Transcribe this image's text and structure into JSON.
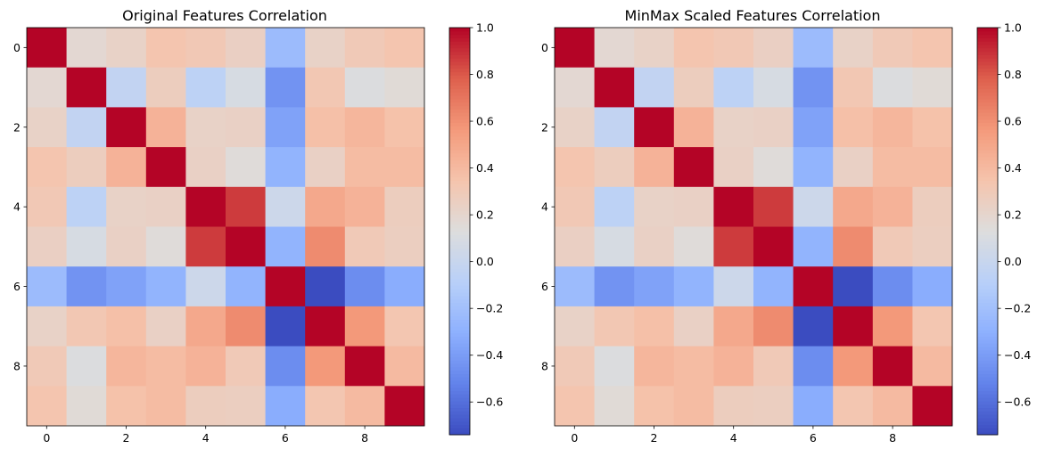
{
  "chart_data": [
    {
      "type": "heatmap",
      "title": "Original Features Correlation",
      "colormap": "coolwarm",
      "x_ticks": [
        0,
        2,
        4,
        6,
        8
      ],
      "y_ticks": [
        0,
        2,
        4,
        6,
        8
      ],
      "matrix": [
        [
          1.0,
          0.18,
          0.23,
          0.34,
          0.31,
          0.25,
          -0.23,
          0.23,
          0.3,
          0.34
        ],
        [
          0.18,
          1.0,
          -0.03,
          0.27,
          -0.06,
          0.09,
          -0.44,
          0.32,
          0.12,
          0.16
        ],
        [
          0.23,
          -0.03,
          1.0,
          0.44,
          0.23,
          0.24,
          -0.37,
          0.37,
          0.42,
          0.36
        ],
        [
          0.34,
          0.27,
          0.44,
          1.0,
          0.24,
          0.15,
          -0.28,
          0.24,
          0.39,
          0.39
        ],
        [
          0.31,
          -0.06,
          0.23,
          0.24,
          1.0,
          0.87,
          0.03,
          0.49,
          0.44,
          0.27
        ],
        [
          0.25,
          0.09,
          0.24,
          0.15,
          0.87,
          1.0,
          -0.28,
          0.62,
          0.3,
          0.26
        ],
        [
          -0.23,
          -0.44,
          -0.37,
          -0.28,
          0.03,
          -0.28,
          1.0,
          -0.74,
          -0.47,
          -0.32
        ],
        [
          0.23,
          0.32,
          0.37,
          0.24,
          0.49,
          0.62,
          -0.74,
          1.0,
          0.57,
          0.33
        ],
        [
          0.3,
          0.12,
          0.42,
          0.39,
          0.44,
          0.3,
          -0.47,
          0.57,
          1.0,
          0.4
        ],
        [
          0.34,
          0.16,
          0.36,
          0.39,
          0.27,
          0.26,
          -0.32,
          0.33,
          0.4,
          1.0
        ]
      ],
      "colorbar": {
        "vmin": -0.74,
        "vmax": 1.0,
        "ticks": [
          -0.6,
          -0.4,
          -0.2,
          0.0,
          0.2,
          0.4,
          0.6,
          0.8,
          1.0
        ]
      }
    },
    {
      "type": "heatmap",
      "title": "MinMax Scaled Features Correlation",
      "colormap": "coolwarm",
      "x_ticks": [
        0,
        2,
        4,
        6,
        8
      ],
      "y_ticks": [
        0,
        2,
        4,
        6,
        8
      ],
      "matrix": [
        [
          1.0,
          0.18,
          0.23,
          0.34,
          0.31,
          0.25,
          -0.23,
          0.23,
          0.3,
          0.34
        ],
        [
          0.18,
          1.0,
          -0.03,
          0.27,
          -0.06,
          0.09,
          -0.44,
          0.32,
          0.12,
          0.16
        ],
        [
          0.23,
          -0.03,
          1.0,
          0.44,
          0.23,
          0.24,
          -0.37,
          0.37,
          0.42,
          0.36
        ],
        [
          0.34,
          0.27,
          0.44,
          1.0,
          0.24,
          0.15,
          -0.28,
          0.24,
          0.39,
          0.39
        ],
        [
          0.31,
          -0.06,
          0.23,
          0.24,
          1.0,
          0.87,
          0.03,
          0.49,
          0.44,
          0.27
        ],
        [
          0.25,
          0.09,
          0.24,
          0.15,
          0.87,
          1.0,
          -0.28,
          0.62,
          0.3,
          0.26
        ],
        [
          -0.23,
          -0.44,
          -0.37,
          -0.28,
          0.03,
          -0.28,
          1.0,
          -0.74,
          -0.47,
          -0.32
        ],
        [
          0.23,
          0.32,
          0.37,
          0.24,
          0.49,
          0.62,
          -0.74,
          1.0,
          0.57,
          0.33
        ],
        [
          0.3,
          0.12,
          0.42,
          0.39,
          0.44,
          0.3,
          -0.47,
          0.57,
          1.0,
          0.4
        ],
        [
          0.34,
          0.16,
          0.36,
          0.39,
          0.27,
          0.26,
          -0.32,
          0.33,
          0.4,
          1.0
        ]
      ],
      "colorbar": {
        "vmin": -0.74,
        "vmax": 1.0,
        "ticks": [
          -0.6,
          -0.4,
          -0.2,
          0.0,
          0.2,
          0.4,
          0.6,
          0.8,
          1.0
        ]
      }
    }
  ]
}
